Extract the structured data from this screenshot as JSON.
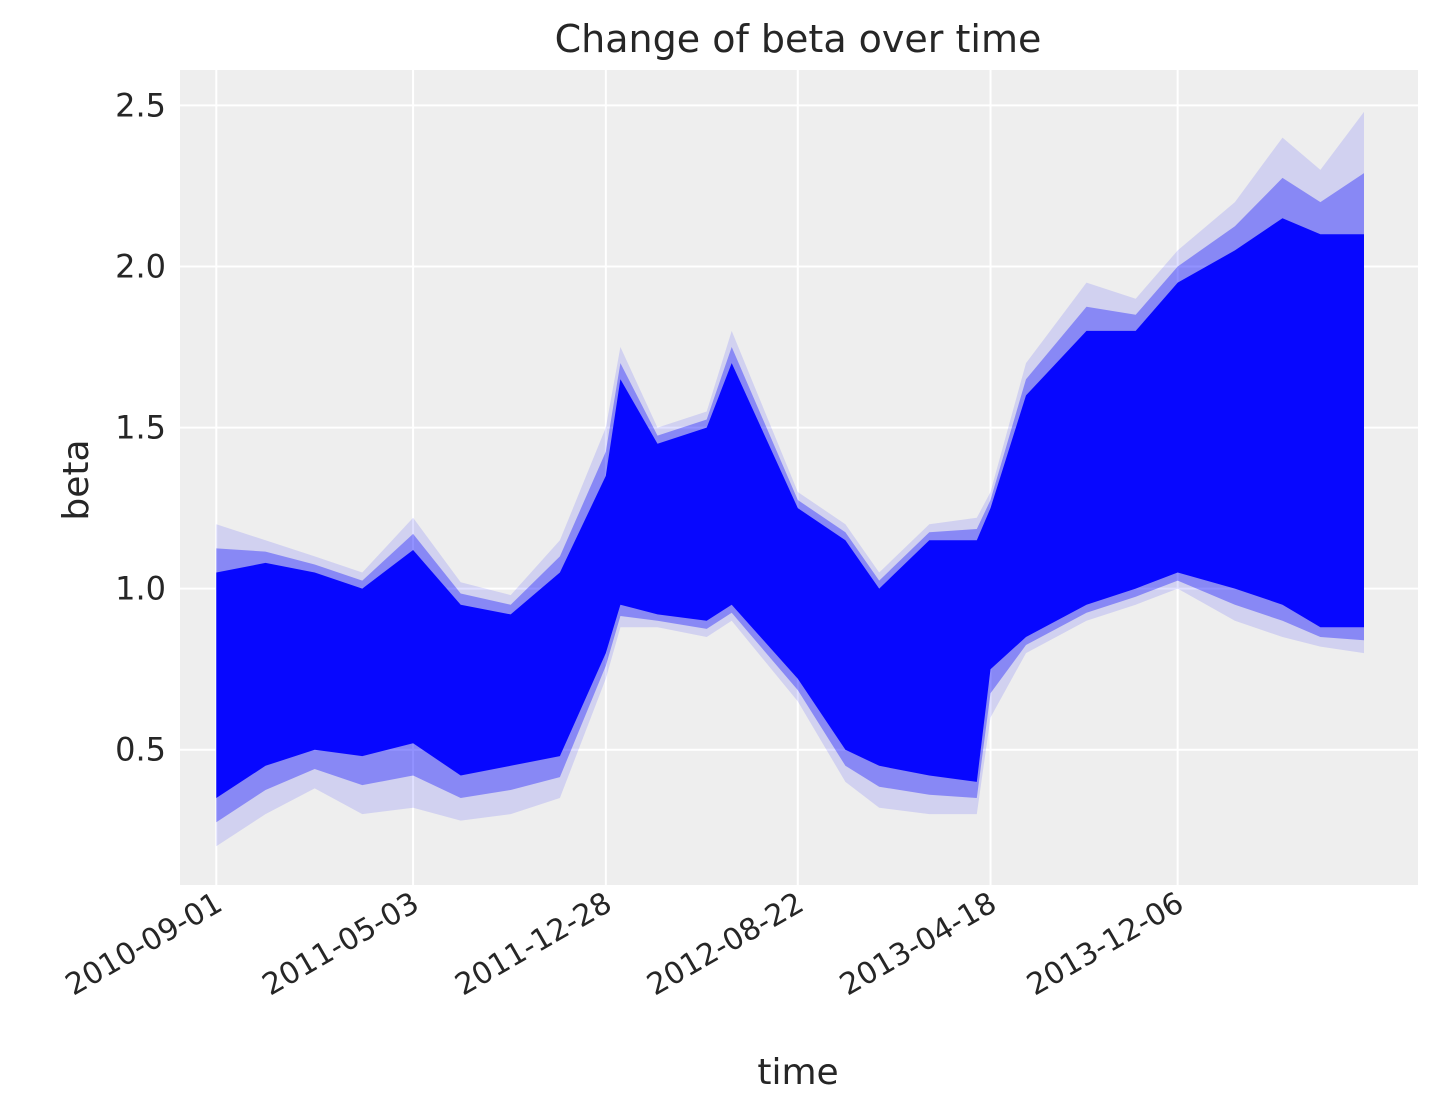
{
  "chart_data": {
    "type": "line",
    "title": "Change of beta over time",
    "xlabel": "time",
    "ylabel": "beta",
    "x_range": [
      "2010-07-18",
      "2014-09-30"
    ],
    "ylim": [
      0.08,
      2.61
    ],
    "y_ticks": [
      0.5,
      1.0,
      1.5,
      2.0,
      2.5
    ],
    "y_tick_labels": [
      "0.5",
      "1.0",
      "1.5",
      "2.0",
      "2.5"
    ],
    "x_ticks": [
      "2010-09-01",
      "2011-05-03",
      "2011-12-28",
      "2012-08-22",
      "2013-04-18",
      "2013-12-06"
    ],
    "grid": true,
    "legend": "none",
    "series_color": "#0000ff",
    "background_color": "#eeeeee",
    "series_name": "",
    "x": [
      "2010-09-01",
      "2010-11-01",
      "2011-01-01",
      "2011-03-01",
      "2011-05-03",
      "2011-07-01",
      "2011-09-01",
      "2011-11-01",
      "2011-12-28",
      "2012-01-15",
      "2012-03-01",
      "2012-05-01",
      "2012-06-01",
      "2012-08-22",
      "2012-10-20",
      "2012-12-01",
      "2013-02-01",
      "2013-04-01",
      "2013-04-18",
      "2013-06-01",
      "2013-08-15",
      "2013-10-15",
      "2013-12-06",
      "2014-02-15",
      "2014-04-15",
      "2014-06-01",
      "2014-07-25"
    ],
    "band": {
      "outer_upper": [
        1.2,
        1.15,
        1.1,
        1.05,
        1.22,
        1.02,
        0.98,
        1.15,
        1.5,
        1.75,
        1.5,
        1.55,
        1.8,
        1.3,
        1.2,
        1.05,
        1.2,
        1.22,
        1.3,
        1.7,
        1.95,
        1.9,
        2.05,
        2.2,
        2.4,
        2.3,
        2.48
      ],
      "inner_upper": [
        1.05,
        1.08,
        1.05,
        1.0,
        1.12,
        0.95,
        0.92,
        1.05,
        1.35,
        1.65,
        1.45,
        1.5,
        1.7,
        1.25,
        1.15,
        1.0,
        1.15,
        1.15,
        1.25,
        1.6,
        1.8,
        1.8,
        1.95,
        2.05,
        2.15,
        2.1,
        2.1
      ],
      "inner_lower": [
        0.35,
        0.45,
        0.5,
        0.48,
        0.52,
        0.42,
        0.45,
        0.48,
        0.8,
        0.95,
        0.92,
        0.9,
        0.95,
        0.72,
        0.5,
        0.45,
        0.42,
        0.4,
        0.75,
        0.85,
        0.95,
        1.0,
        1.05,
        1.0,
        0.95,
        0.88,
        0.88
      ],
      "outer_lower": [
        0.2,
        0.3,
        0.38,
        0.3,
        0.32,
        0.28,
        0.3,
        0.35,
        0.72,
        0.88,
        0.88,
        0.85,
        0.9,
        0.65,
        0.4,
        0.32,
        0.3,
        0.3,
        0.6,
        0.8,
        0.9,
        0.95,
        1.0,
        0.9,
        0.85,
        0.82,
        0.8
      ]
    }
  }
}
